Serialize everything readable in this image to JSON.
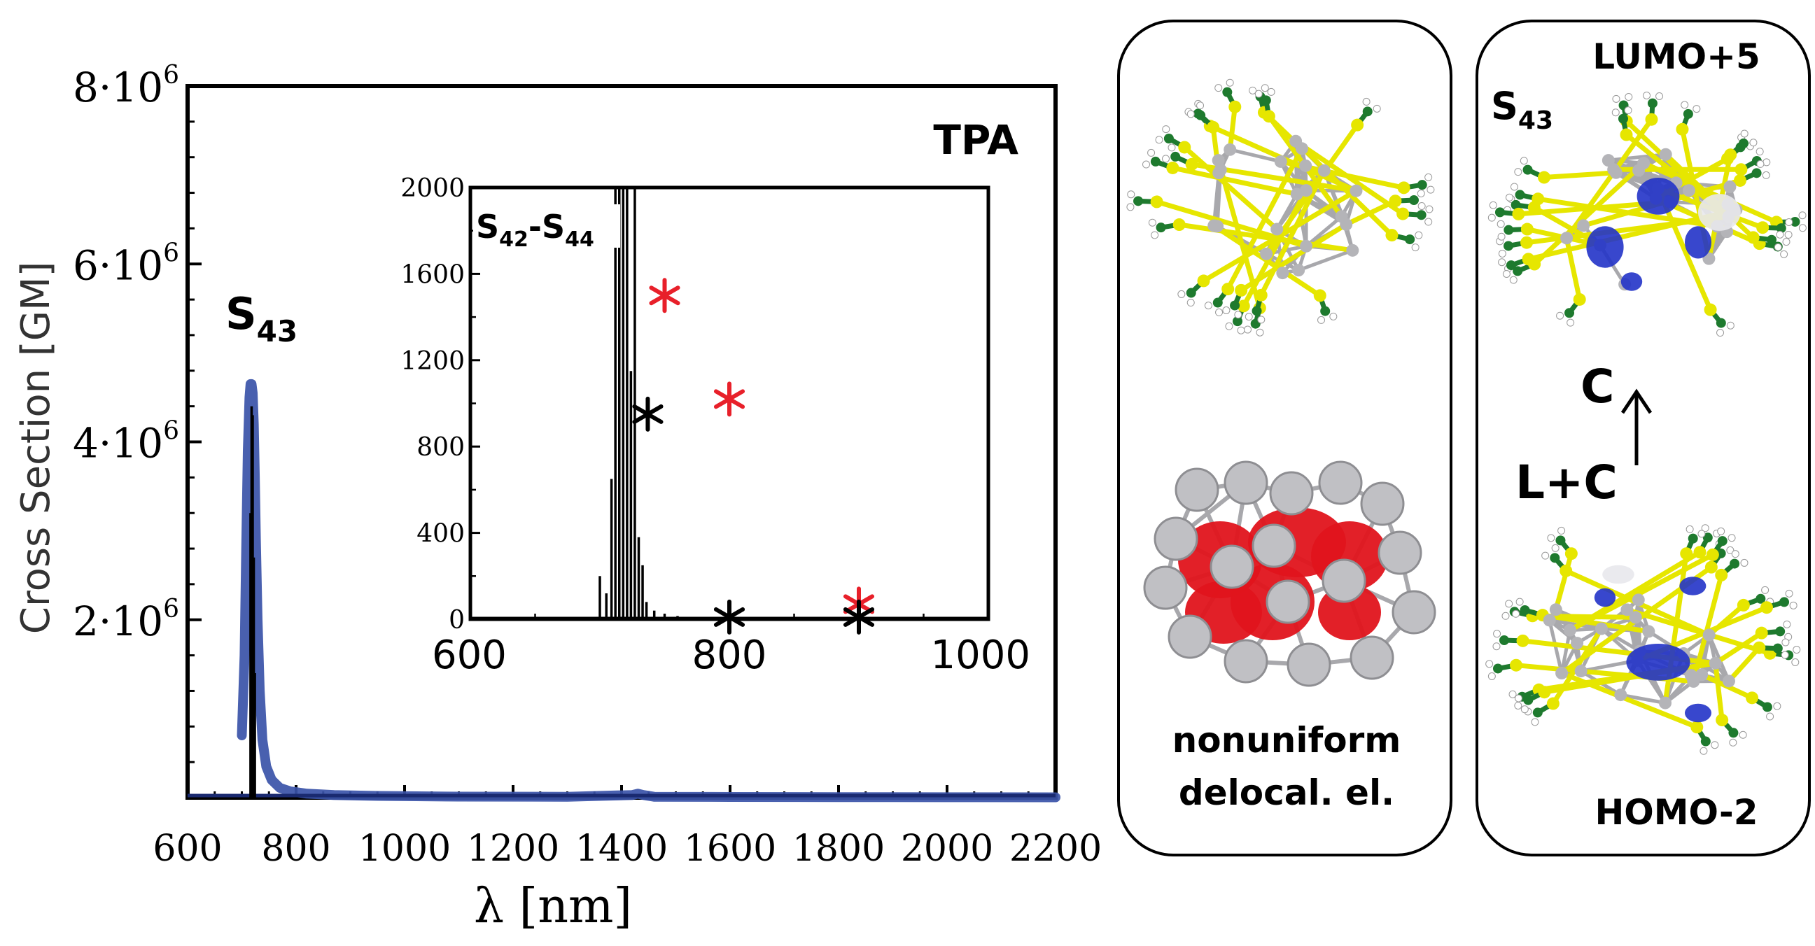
{
  "chart_data": [
    {
      "type": "line",
      "title": "",
      "annotation": "TPA",
      "peak_label": {
        "base": "S",
        "sub": "43"
      },
      "xlabel": "λ [nm]",
      "ylabel": "Cross Section [GM]",
      "xlim": [
        600,
        2200
      ],
      "ylim": [
        0,
        8000000
      ],
      "x_ticks": [
        600,
        800,
        1000,
        1200,
        1400,
        1600,
        1800,
        2000,
        2200
      ],
      "y_ticks": [
        {
          "value": 2000000,
          "base": "2·10",
          "exp": "6"
        },
        {
          "value": 4000000,
          "base": "4·10",
          "exp": "6"
        },
        {
          "value": 6000000,
          "base": "6·10",
          "exp": "6"
        },
        {
          "value": 8000000,
          "base": "8·10",
          "exp": "6"
        }
      ],
      "grid": false,
      "series": [
        {
          "color": "#3a52a8",
          "style": "broadened",
          "x": [
            700,
            705,
            708,
            711,
            714,
            716,
            718,
            720,
            722,
            724,
            726,
            729,
            733,
            738,
            745,
            755,
            770,
            790,
            820,
            870,
            950,
            1100,
            1300,
            1420,
            1430,
            1440,
            1460,
            1600,
            1800,
            2000,
            2200
          ],
          "y": [
            700000,
            1600000,
            2800000,
            3900000,
            4500000,
            4650000,
            4650000,
            4550000,
            4200000,
            3600000,
            2900000,
            2000000,
            1200000,
            650000,
            350000,
            200000,
            110000,
            70000,
            45000,
            30000,
            20000,
            12000,
            10000,
            30000,
            45000,
            30000,
            10000,
            8000,
            6000,
            5000,
            4000
          ]
        },
        {
          "color": "#000000",
          "style": "stick",
          "x": [
            716,
            718,
            720,
            722,
            724
          ],
          "y": [
            3200000,
            4400000,
            4300000,
            2700000,
            1400000
          ]
        }
      ]
    },
    {
      "type": "bar",
      "title": "",
      "label": {
        "base": "S",
        "sub1": "42",
        "sep": "-S",
        "sub2": "44"
      },
      "xlim": [
        600,
        1000
      ],
      "ylim": [
        0,
        2000
      ],
      "x_ticks": [
        600,
        800,
        1000
      ],
      "y_ticks": [
        0,
        400,
        800,
        1200,
        1600,
        2000
      ],
      "sticks": [
        {
          "x": 700,
          "y": 200
        },
        {
          "x": 705,
          "y": 120
        },
        {
          "x": 709,
          "y": 650
        },
        {
          "x": 712,
          "y": 2000
        },
        {
          "x": 715,
          "y": 2000
        },
        {
          "x": 718,
          "y": 2000
        },
        {
          "x": 721,
          "y": 2000
        },
        {
          "x": 724,
          "y": 1150
        },
        {
          "x": 727,
          "y": 2000
        },
        {
          "x": 730,
          "y": 380
        },
        {
          "x": 733,
          "y": 250
        },
        {
          "x": 736,
          "y": 80
        },
        {
          "x": 742,
          "y": 40
        },
        {
          "x": 750,
          "y": 25
        },
        {
          "x": 760,
          "y": 15
        }
      ],
      "markers": [
        {
          "x": 750,
          "y": 1500,
          "color": "#e8202a"
        },
        {
          "x": 800,
          "y": 1020,
          "color": "#e8202a"
        },
        {
          "x": 900,
          "y": 70,
          "color": "#e8202a"
        },
        {
          "x": 737,
          "y": 950,
          "color": "#000000"
        },
        {
          "x": 800,
          "y": 10,
          "color": "#000000"
        },
        {
          "x": 900,
          "y": 10,
          "color": "#000000"
        }
      ]
    }
  ],
  "panels": {
    "middle": {
      "caption_line1": "nonuniform",
      "caption_line2": "delocal. el."
    },
    "right": {
      "state": {
        "base": "S",
        "sub": "43"
      },
      "top_orbital": "LUMO+5",
      "bottom_orbital": "HOMO-2",
      "arrow_top_label": "C",
      "arrow_bottom_label": "L+C"
    }
  },
  "colors": {
    "blue_curve": "#3a52a8",
    "red_marker": "#e8202a",
    "metal_atom": "#b4b4b8",
    "sulfur": "#e6e600",
    "carbon": "#1e7a2e",
    "hydrogen": "#ffffff",
    "density_red": "#e0141c",
    "orbital_blue": "#2233c8"
  }
}
